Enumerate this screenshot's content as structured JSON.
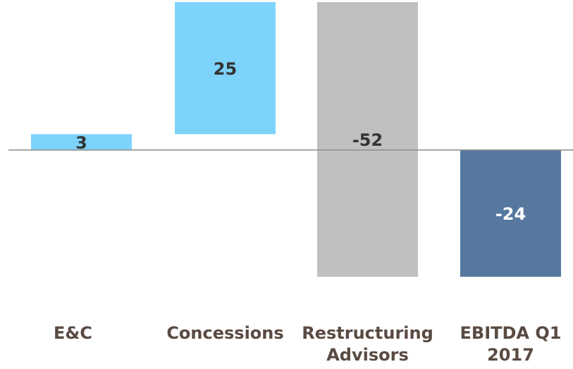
{
  "chart_data": {
    "type": "bar",
    "subtype": "waterfall",
    "categories": [
      "E&C",
      "Concessions",
      "Restructuring Advisors",
      "EBITDA Q1 2017"
    ],
    "category_label_lines": [
      [
        "E&C"
      ],
      [
        "Concessions"
      ],
      [
        "Restructuring",
        "Advisors"
      ],
      [
        "EBITDA Q1",
        "2017"
      ]
    ],
    "values": [
      3,
      25,
      -52,
      -24
    ],
    "value_labels": [
      "3",
      "25",
      "-52",
      "-24"
    ],
    "colors": [
      "#7dd3fa",
      "#7dd3fa",
      "#c0c0c0",
      "#56789f"
    ],
    "value_label_colors": [
      "#333333",
      "#333333",
      "#333333",
      "#ffffff"
    ],
    "ylim": [
      -24,
      28
    ],
    "grid": false,
    "legend": "none"
  }
}
